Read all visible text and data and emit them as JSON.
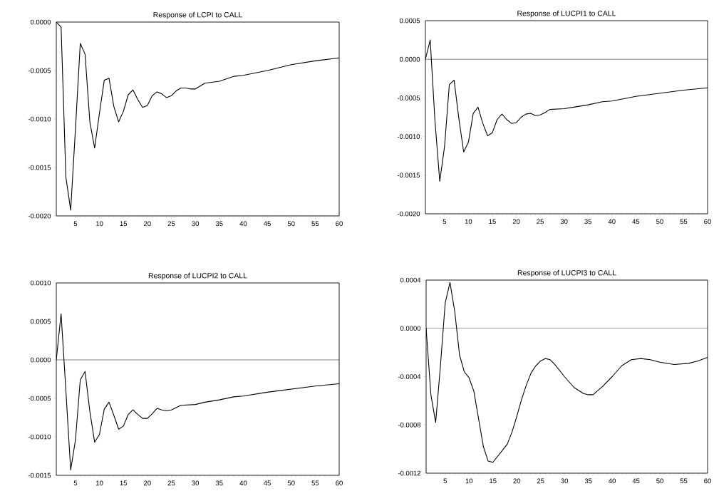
{
  "chart_data": [
    {
      "type": "line",
      "title": "Response of LCPI to CALL",
      "color": "#000000",
      "x": [
        1,
        2,
        3,
        4,
        5,
        6,
        7,
        8,
        9,
        10,
        11,
        12,
        13,
        14,
        15,
        16,
        17,
        18,
        19,
        20,
        21,
        22,
        23,
        24,
        25,
        26,
        27,
        28,
        29,
        30,
        32,
        35,
        38,
        40,
        45,
        50,
        55,
        60
      ],
      "values": [
        0,
        -5e-05,
        -0.0016,
        -0.00194,
        -0.0011,
        -0.00022,
        -0.00033,
        -0.00103,
        -0.0013,
        -0.00094,
        -0.0006,
        -0.00058,
        -0.00087,
        -0.00103,
        -0.00092,
        -0.00075,
        -0.0007,
        -0.0008,
        -0.00088,
        -0.00086,
        -0.00076,
        -0.00072,
        -0.00074,
        -0.00078,
        -0.00076,
        -0.00071,
        -0.00068,
        -0.00068,
        -0.00069,
        -0.00069,
        -0.00063,
        -0.00061,
        -0.00056,
        -0.00055,
        -0.0005,
        -0.00044,
        -0.0004,
        -0.00037
      ],
      "xlim": [
        1,
        60
      ],
      "ylim": [
        -0.002,
        0
      ],
      "xticks": [
        5,
        10,
        15,
        20,
        25,
        30,
        35,
        40,
        45,
        50,
        55,
        60
      ],
      "yticks": [
        {
          "value": -0.002,
          "label": "-0.0020"
        },
        {
          "value": -0.0015,
          "label": "-0.0015"
        },
        {
          "value": -0.001,
          "label": "-0.0010"
        },
        {
          "value": -0.0005,
          "label": "-0.0005"
        },
        {
          "value": 0,
          "label": "0.0000"
        }
      ]
    },
    {
      "type": "line",
      "title": "Response of LUCPI1 to CALL",
      "color": "#000000",
      "x": [
        1,
        2,
        3,
        4,
        5,
        6,
        7,
        8,
        9,
        10,
        11,
        12,
        13,
        14,
        15,
        16,
        17,
        18,
        19,
        20,
        21,
        22,
        23,
        24,
        25,
        26,
        27,
        30,
        32,
        35,
        38,
        40,
        45,
        50,
        55,
        60
      ],
      "values": [
        0,
        0.00025,
        -0.0008,
        -0.00158,
        -0.00113,
        -0.00033,
        -0.00027,
        -0.00077,
        -0.0012,
        -0.00107,
        -0.0007,
        -0.00062,
        -0.00083,
        -0.00099,
        -0.00095,
        -0.00078,
        -0.00071,
        -0.00078,
        -0.00083,
        -0.00082,
        -0.00075,
        -0.00071,
        -0.0007,
        -0.00073,
        -0.00072,
        -0.00069,
        -0.00065,
        -0.00064,
        -0.00062,
        -0.00059,
        -0.00055,
        -0.00054,
        -0.00048,
        -0.00044,
        -0.0004,
        -0.00037
      ],
      "xlim": [
        1,
        60
      ],
      "ylim": [
        -0.002,
        0.0005
      ],
      "xticks": [
        5,
        10,
        15,
        20,
        25,
        30,
        35,
        40,
        45,
        50,
        55,
        60
      ],
      "yticks": [
        {
          "value": -0.002,
          "label": "-0.0020"
        },
        {
          "value": -0.0015,
          "label": "-0.0015"
        },
        {
          "value": -0.001,
          "label": "-0.0010"
        },
        {
          "value": -0.0005,
          "label": "-0.0005"
        },
        {
          "value": 0,
          "label": "0.0000"
        },
        {
          "value": 0.0005,
          "label": "0.0005"
        }
      ],
      "ref_lines": [
        {
          "axis": "y",
          "value": 0,
          "color": "#000000"
        }
      ]
    },
    {
      "type": "line",
      "title": "Response of LUCPI2 to CALL",
      "color": "#000000",
      "x": [
        1,
        2,
        3,
        4,
        5,
        6,
        7,
        8,
        9,
        10,
        11,
        12,
        13,
        14,
        15,
        16,
        17,
        18,
        19,
        20,
        21,
        22,
        23,
        24,
        25,
        26,
        27,
        30,
        32,
        35,
        38,
        40,
        45,
        50,
        55,
        60
      ],
      "values": [
        0,
        0.0006,
        -0.0004,
        -0.00143,
        -0.00104,
        -0.00026,
        -0.00015,
        -0.00067,
        -0.00107,
        -0.00097,
        -0.00064,
        -0.00055,
        -0.00072,
        -0.0009,
        -0.00086,
        -0.00071,
        -0.00065,
        -0.00071,
        -0.00076,
        -0.00076,
        -0.0007,
        -0.00063,
        -0.00065,
        -0.00066,
        -0.00065,
        -0.00062,
        -0.00059,
        -0.00058,
        -0.00055,
        -0.00052,
        -0.00048,
        -0.00047,
        -0.00042,
        -0.00038,
        -0.00034,
        -0.00031
      ],
      "xlim": [
        1,
        60
      ],
      "ylim": [
        -0.0015,
        0.001
      ],
      "xticks": [
        5,
        10,
        15,
        20,
        25,
        30,
        35,
        40,
        45,
        50,
        55,
        60
      ],
      "yticks": [
        {
          "value": -0.0015,
          "label": "-0.0015"
        },
        {
          "value": -0.001,
          "label": "-0.0010"
        },
        {
          "value": -0.0005,
          "label": "-0.0005"
        },
        {
          "value": 0,
          "label": "0.0000"
        },
        {
          "value": 0.0005,
          "label": "0.0005"
        },
        {
          "value": 0.001,
          "label": "0.0010"
        }
      ],
      "ref_lines": [
        {
          "axis": "y",
          "value": 0,
          "color": "#000000"
        }
      ]
    },
    {
      "type": "line",
      "title": "Response of LUCPI3 to CALL",
      "color": "#000000",
      "x": [
        1,
        2,
        3,
        4,
        5,
        6,
        7,
        8,
        9,
        10,
        11,
        12,
        13,
        14,
        15,
        16,
        17,
        18,
        19,
        20,
        21,
        22,
        23,
        24,
        25,
        26,
        27,
        28,
        30,
        32,
        34,
        35,
        36,
        38,
        40,
        42,
        44,
        46,
        48,
        50,
        53,
        56,
        58,
        60
      ],
      "values": [
        0,
        -0.00055,
        -0.00078,
        -0.00031,
        0.00021,
        0.00038,
        0.00014,
        -0.00022,
        -0.00036,
        -0.00041,
        -0.00052,
        -0.00075,
        -0.00098,
        -0.0011,
        -0.00111,
        -0.00106,
        -0.00101,
        -0.00096,
        -0.00086,
        -0.00073,
        -0.00059,
        -0.00047,
        -0.00037,
        -0.00031,
        -0.00027,
        -0.00025,
        -0.00026,
        -0.0003,
        -0.0004,
        -0.00049,
        -0.00054,
        -0.00055,
        -0.00055,
        -0.00048,
        -0.0004,
        -0.00031,
        -0.00026,
        -0.00025,
        -0.00026,
        -0.00028,
        -0.0003,
        -0.00029,
        -0.00027,
        -0.00024
      ],
      "xlim": [
        1,
        60
      ],
      "ylim": [
        -0.0012,
        0.0004
      ],
      "xticks": [
        5,
        10,
        15,
        20,
        25,
        30,
        35,
        40,
        45,
        50,
        55,
        60
      ],
      "yticks": [
        {
          "value": -0.0012,
          "label": "-0.0012"
        },
        {
          "value": -0.0008,
          "label": "-0.0008"
        },
        {
          "value": -0.0004,
          "label": "-0.0004"
        },
        {
          "value": 0,
          "label": "0.0000"
        },
        {
          "value": 0.0004,
          "label": "0.0004"
        }
      ],
      "ref_lines": [
        {
          "axis": "y",
          "value": 0,
          "color": "#000000"
        }
      ]
    }
  ]
}
